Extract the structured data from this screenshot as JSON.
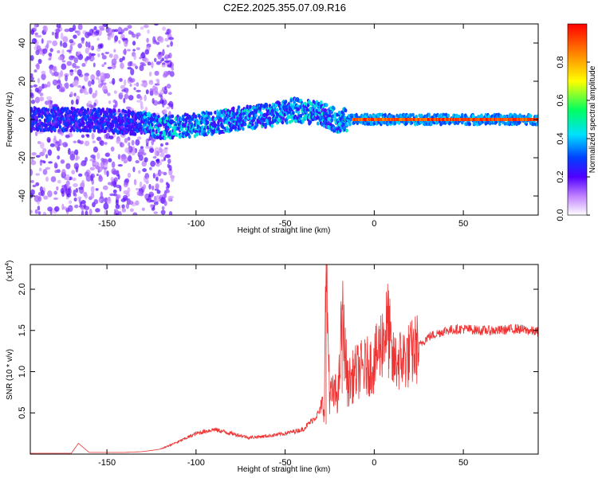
{
  "title": "C2E2.2025.355.07.09.R16",
  "chart_data": [
    {
      "type": "heatmap",
      "xlabel": "Height of straight line (km)",
      "ylabel": "Frequency (Hz)",
      "xlim": [
        -193,
        92
      ],
      "ylim": [
        -50,
        50
      ],
      "xticks": [
        -150,
        -100,
        -50,
        0,
        50
      ],
      "yticks": [
        -40,
        -20,
        0,
        20,
        40
      ],
      "grid": false,
      "colorbar": {
        "label": "Normalized spectral amplitude",
        "range": [
          0,
          1
        ],
        "ticks": [
          0.0,
          0.2,
          0.4,
          0.6,
          0.8
        ],
        "colors": [
          "#ffffff",
          "#c080ff",
          "#5000ff",
          "#0040ff",
          "#00e0ff",
          "#00ff60",
          "#ffff00",
          "#ff8000",
          "#ff0000"
        ]
      },
      "ridge": [
        {
          "x": -190,
          "f": 0
        },
        {
          "x": -160,
          "f": 0
        },
        {
          "x": -130,
          "f": -2
        },
        {
          "x": -120,
          "f": -4
        },
        {
          "x": -100,
          "f": -3
        },
        {
          "x": -80,
          "f": 0
        },
        {
          "x": -60,
          "f": 2
        },
        {
          "x": -45,
          "f": 5
        },
        {
          "x": -30,
          "f": 3
        },
        {
          "x": -20,
          "f": -1
        },
        {
          "x": -15,
          "f": 0
        },
        {
          "x": 0,
          "f": 0
        },
        {
          "x": 50,
          "f": 0
        },
        {
          "x": 90,
          "f": 0
        }
      ]
    },
    {
      "type": "line",
      "xlabel": "Height of straight line (km)",
      "ylabel": "SNR (10 * v/v)",
      "yscale_label": "(x10",
      "yscale_exponent": "4",
      "xlim": [
        -193,
        92
      ],
      "ylim": [
        0,
        2.3
      ],
      "xticks": [
        -150,
        -100,
        -50,
        0,
        50
      ],
      "yticks": [
        0.5,
        1.0,
        1.5,
        2.0
      ],
      "color": "#ee3333",
      "series": [
        {
          "name": "SNR",
          "points": [
            {
              "x": -193,
              "y": 0.01
            },
            {
              "x": -170,
              "y": 0.01
            },
            {
              "x": -166,
              "y": 0.13
            },
            {
              "x": -160,
              "y": 0.02
            },
            {
              "x": -140,
              "y": 0.02
            },
            {
              "x": -130,
              "y": 0.03
            },
            {
              "x": -120,
              "y": 0.06
            },
            {
              "x": -110,
              "y": 0.15
            },
            {
              "x": -100,
              "y": 0.25
            },
            {
              "x": -90,
              "y": 0.3
            },
            {
              "x": -80,
              "y": 0.25
            },
            {
              "x": -70,
              "y": 0.2
            },
            {
              "x": -60,
              "y": 0.22
            },
            {
              "x": -50,
              "y": 0.25
            },
            {
              "x": -40,
              "y": 0.3
            },
            {
              "x": -33,
              "y": 0.45
            },
            {
              "x": -28,
              "y": 0.6
            },
            {
              "x": -27,
              "y": 2.3
            },
            {
              "x": -25,
              "y": 0.7
            },
            {
              "x": -20,
              "y": 0.75
            },
            {
              "x": -18,
              "y": 1.7
            },
            {
              "x": -15,
              "y": 0.85
            },
            {
              "x": -10,
              "y": 1.0
            },
            {
              "x": -5,
              "y": 1.05
            },
            {
              "x": 0,
              "y": 1.1
            },
            {
              "x": 8,
              "y": 1.6
            },
            {
              "x": 10,
              "y": 1.1
            },
            {
              "x": 20,
              "y": 1.2
            },
            {
              "x": 30,
              "y": 1.42
            },
            {
              "x": 40,
              "y": 1.5
            },
            {
              "x": 50,
              "y": 1.52
            },
            {
              "x": 60,
              "y": 1.5
            },
            {
              "x": 70,
              "y": 1.5
            },
            {
              "x": 80,
              "y": 1.52
            },
            {
              "x": 92,
              "y": 1.48
            }
          ]
        }
      ]
    }
  ]
}
